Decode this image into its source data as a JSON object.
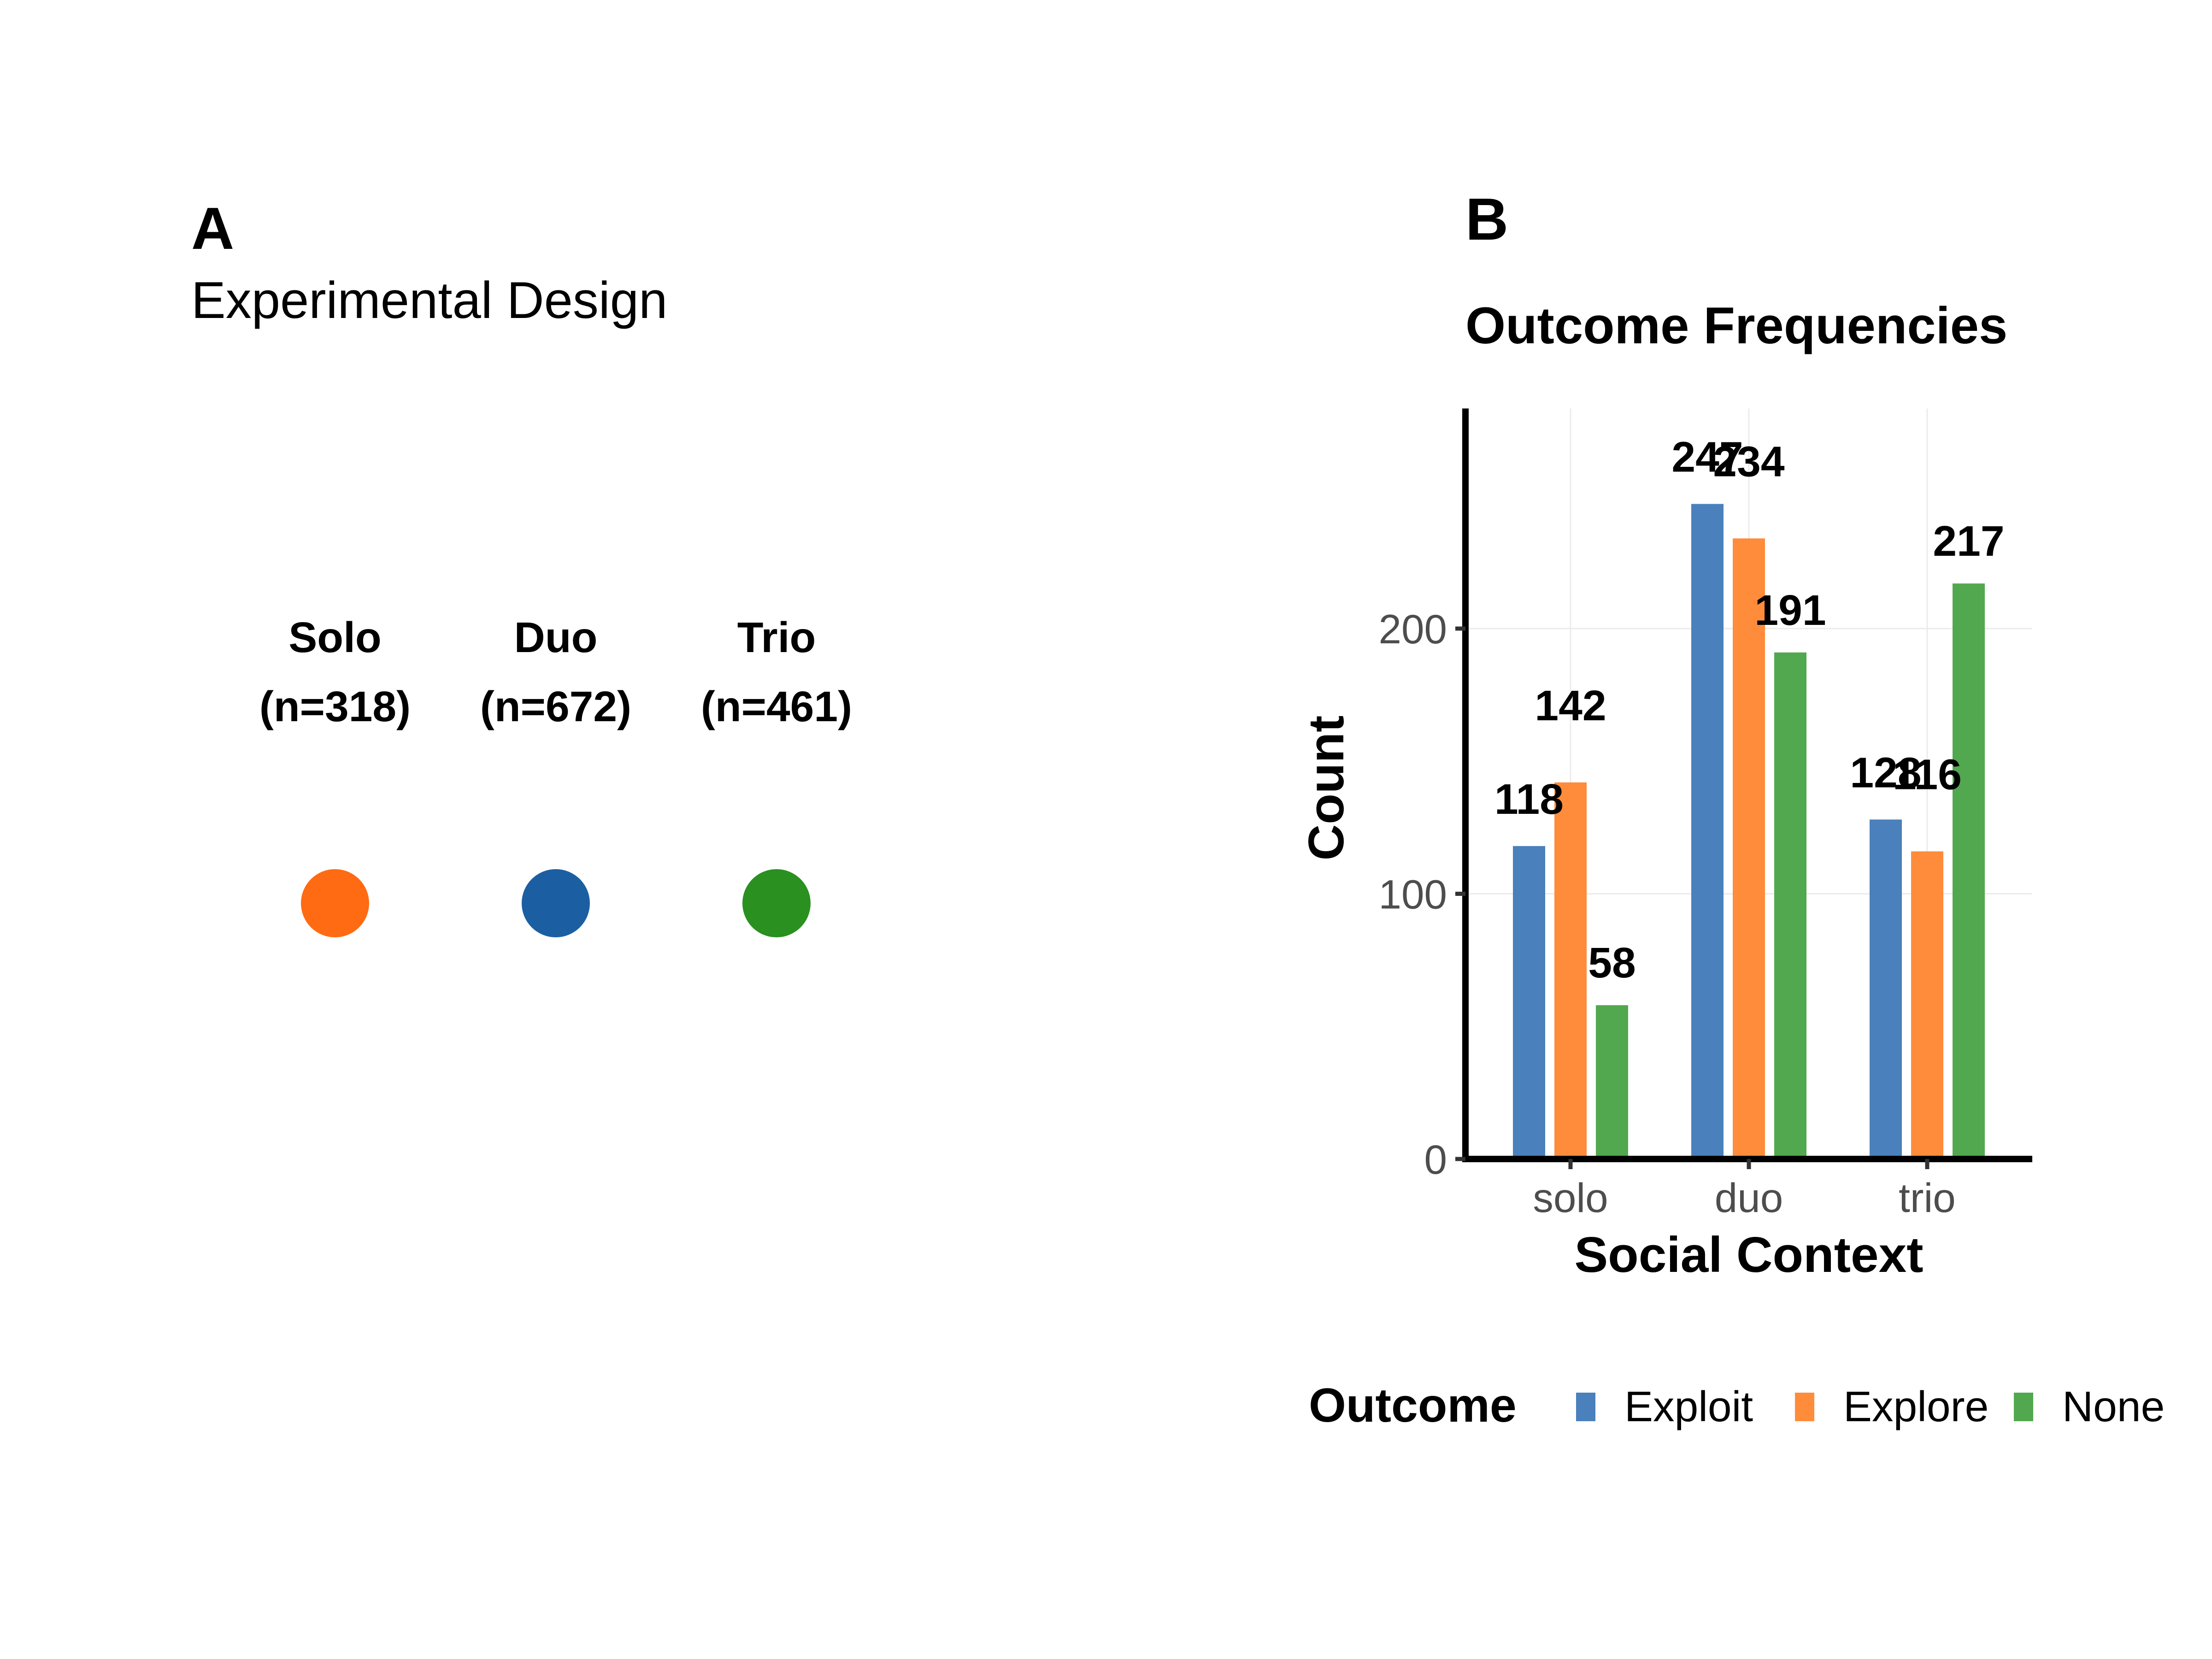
{
  "panel_a": {
    "letter": "A",
    "subtitle": "Experimental Design",
    "conditions": [
      {
        "name": "Solo",
        "n_label": "(n=318)",
        "color": "#FF6B12"
      },
      {
        "name": "Duo",
        "n_label": "(n=672)",
        "color": "#1B5FA2"
      },
      {
        "name": "Trio",
        "n_label": "(n=461)",
        "color": "#2A9020"
      }
    ]
  },
  "panel_b": {
    "letter": "B"
  },
  "chart_data": {
    "type": "bar",
    "title": "Outcome Frequencies",
    "xlabel": "Social Context",
    "ylabel": "Count",
    "categories": [
      "solo",
      "duo",
      "trio"
    ],
    "series": [
      {
        "name": "Exploit",
        "color": "#4A80BB",
        "values": [
          118,
          247,
          128
        ]
      },
      {
        "name": "Explore",
        "color": "#FF8C3B",
        "values": [
          142,
          234,
          116
        ]
      },
      {
        "name": "None",
        "color": "#52A84E",
        "values": [
          58,
          191,
          217
        ]
      }
    ],
    "ylim": [
      0,
      283
    ],
    "yticks": [
      0,
      100,
      200
    ],
    "grid": true,
    "legend": {
      "title": "Outcome",
      "position": "bottom"
    }
  }
}
